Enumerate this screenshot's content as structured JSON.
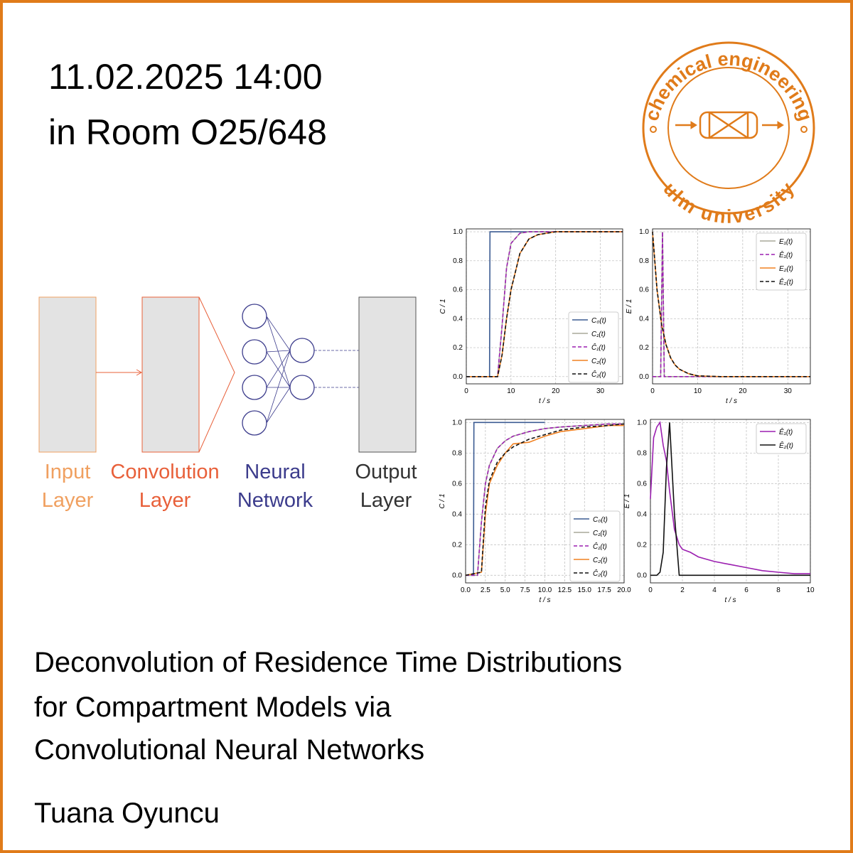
{
  "header": {
    "date": "11.02.2025 14:00",
    "room": "in Room O25/648"
  },
  "logo": {
    "top": "chemical engineering",
    "bottom": "ulm university"
  },
  "diagram": {
    "blocks": [
      {
        "lines": [
          "Input",
          "Layer"
        ],
        "color": "#f0a060"
      },
      {
        "lines": [
          "Convolution",
          "Layer"
        ],
        "color": "#e8603a"
      },
      {
        "lines": [
          "Neural",
          "Network"
        ],
        "color": "#3c3c8c"
      },
      {
        "lines": [
          "Output",
          "Layer"
        ],
        "color": "#333333"
      }
    ]
  },
  "chart_data": [
    {
      "type": "line",
      "xlabel": "t / s",
      "ylabel": "C / 1",
      "xlim": [
        0,
        35
      ],
      "ylim": [
        -0.05,
        1.02
      ],
      "xticks": [
        0,
        10,
        20,
        30
      ],
      "yticks": [
        {
          "value": 0,
          "label": "0.0"
        },
        0.2,
        0.4,
        0.6,
        0.8,
        {
          "value": 1,
          "label": "1.0"
        }
      ],
      "grid": true,
      "legend": "lower right",
      "series": [
        {
          "name": "C₀(t)",
          "color": "#3b5b92",
          "linestyle": "solid",
          "x": [
            0,
            2,
            4,
            5.2,
            5.3,
            8,
            12,
            20,
            35
          ],
          "values": [
            0,
            0,
            0,
            0,
            1,
            1,
            1,
            1,
            1
          ]
        },
        {
          "name": "C₁(t)",
          "color": "#a8a89a",
          "linestyle": "solid",
          "x": [
            0,
            4,
            7,
            8,
            9,
            10,
            12,
            14,
            20,
            35
          ],
          "values": [
            0,
            0,
            0,
            0.35,
            0.75,
            0.92,
            0.99,
            1,
            1,
            1
          ]
        },
        {
          "name": "Ĉ₁(t)",
          "color": "#9b1fb0",
          "linestyle": "dashed",
          "x": [
            0,
            4,
            7,
            8,
            9,
            10,
            12,
            14,
            20,
            35
          ],
          "values": [
            0,
            0,
            0,
            0.35,
            0.75,
            0.92,
            0.99,
            1,
            1,
            1
          ]
        },
        {
          "name": "C₂(t)",
          "color": "#f08020",
          "linestyle": "solid",
          "x": [
            0,
            4,
            7,
            8,
            9,
            10,
            12,
            14,
            16,
            18,
            20,
            35
          ],
          "values": [
            0,
            0,
            0,
            0.15,
            0.4,
            0.6,
            0.85,
            0.95,
            0.98,
            0.99,
            1,
            1
          ]
        },
        {
          "name": "Ĉ₂(t)",
          "color": "#111111",
          "linestyle": "dashed",
          "x": [
            0,
            4,
            7,
            8,
            9,
            10,
            12,
            14,
            16,
            18,
            20,
            35
          ],
          "values": [
            0,
            0,
            0,
            0.15,
            0.4,
            0.6,
            0.85,
            0.95,
            0.98,
            0.99,
            1,
            1
          ]
        }
      ]
    },
    {
      "type": "line",
      "xlabel": "t / s",
      "ylabel": "E / 1",
      "xlim": [
        0,
        35
      ],
      "ylim": [
        -0.05,
        1.02
      ],
      "xticks": [
        0,
        10,
        20,
        30
      ],
      "yticks": [
        {
          "value": 0,
          "label": "0.0"
        },
        0.2,
        0.4,
        0.6,
        0.8,
        {
          "value": 1,
          "label": "1.0"
        }
      ],
      "grid": true,
      "legend": "upper right",
      "series": [
        {
          "name": "E₁(t)",
          "color": "#a8a89a",
          "linestyle": "solid",
          "x": [
            0,
            1.8,
            2.2,
            2.6,
            3,
            10,
            35
          ],
          "values": [
            0,
            0,
            1,
            0,
            0,
            0,
            0
          ]
        },
        {
          "name": "Ê₁(t)",
          "color": "#9b1fb0",
          "linestyle": "dashed",
          "x": [
            0,
            1.8,
            2.2,
            2.6,
            3,
            10,
            35
          ],
          "values": [
            0,
            0,
            1,
            0,
            0,
            0,
            0
          ]
        },
        {
          "name": "E₂(t)",
          "color": "#f08020",
          "linestyle": "solid",
          "x": [
            0,
            1,
            2,
            3,
            4,
            5,
            6,
            8,
            10,
            15,
            35
          ],
          "values": [
            1,
            0.6,
            0.36,
            0.22,
            0.13,
            0.08,
            0.05,
            0.02,
            0.005,
            0,
            0
          ]
        },
        {
          "name": "Ê₂(t)",
          "color": "#111111",
          "linestyle": "dashed",
          "x": [
            0,
            1,
            2,
            3,
            4,
            5,
            6,
            8,
            10,
            15,
            35
          ],
          "values": [
            1,
            0.6,
            0.36,
            0.22,
            0.13,
            0.08,
            0.05,
            0.02,
            0.005,
            0,
            0
          ]
        }
      ]
    },
    {
      "type": "line",
      "xlabel": "t / s",
      "ylabel": "C / 1",
      "xlim": [
        0,
        20
      ],
      "ylim": [
        -0.05,
        1.02
      ],
      "xticks": [
        {
          "value": 0,
          "label": "0.0"
        },
        2.5,
        {
          "value": 5,
          "label": "5.0"
        },
        7.5,
        {
          "value": 10,
          "label": "10.0"
        },
        12.5,
        {
          "value": 15,
          "label": "15.0"
        },
        17.5,
        {
          "value": 20,
          "label": "20.0"
        }
      ],
      "yticks": [
        {
          "value": 0,
          "label": "0.0"
        },
        0.2,
        0.4,
        0.6,
        0.8,
        {
          "value": 1,
          "label": "1.0"
        }
      ],
      "grid": true,
      "legend": "lower right",
      "series": [
        {
          "name": "C₀(t)",
          "color": "#3b5b92",
          "linestyle": "solid",
          "x": [
            0,
            1,
            1.05,
            5,
            10
          ],
          "values": [
            0,
            0,
            1,
            1,
            1
          ]
        },
        {
          "name": "C₁(t)",
          "color": "#a8a89a",
          "linestyle": "solid",
          "x": [
            0,
            1.5,
            2,
            2.5,
            3,
            4,
            5,
            6,
            8,
            10,
            12,
            15,
            18,
            20
          ],
          "values": [
            0,
            0,
            0.35,
            0.6,
            0.72,
            0.83,
            0.88,
            0.91,
            0.94,
            0.96,
            0.97,
            0.98,
            0.99,
            0.99
          ]
        },
        {
          "name": "Ĉ₁(t)",
          "color": "#9b1fb0",
          "linestyle": "dashed",
          "x": [
            0,
            1.5,
            2,
            2.5,
            3,
            4,
            5,
            6,
            8,
            10,
            12,
            15,
            18,
            20
          ],
          "values": [
            0,
            0,
            0.35,
            0.6,
            0.72,
            0.83,
            0.88,
            0.91,
            0.94,
            0.96,
            0.97,
            0.98,
            0.99,
            0.99
          ]
        },
        {
          "name": "C₂(t)",
          "color": "#f08020",
          "linestyle": "solid",
          "x": [
            0,
            2,
            2.5,
            3,
            4,
            5,
            6,
            8,
            10,
            12,
            15,
            18,
            20
          ],
          "values": [
            0,
            0.02,
            0.4,
            0.6,
            0.72,
            0.8,
            0.86,
            0.87,
            0.91,
            0.94,
            0.96,
            0.98,
            0.98
          ]
        },
        {
          "name": "Ĉ₂(t)",
          "color": "#111111",
          "linestyle": "dashed",
          "x": [
            0,
            2,
            2.5,
            3,
            4,
            5,
            6,
            8,
            10,
            12,
            15,
            18,
            20
          ],
          "values": [
            0,
            0.02,
            0.45,
            0.62,
            0.74,
            0.8,
            0.84,
            0.89,
            0.92,
            0.95,
            0.97,
            0.98,
            0.99
          ]
        }
      ]
    },
    {
      "type": "line",
      "xlabel": "t / s",
      "ylabel": "E / 1",
      "xlim": [
        0,
        10
      ],
      "ylim": [
        -0.05,
        1.02
      ],
      "xticks": [
        0,
        2,
        4,
        6,
        8,
        10
      ],
      "yticks": [
        {
          "value": 0,
          "label": "0.0"
        },
        0.2,
        0.4,
        0.6,
        0.8,
        {
          "value": 1,
          "label": "1.0"
        }
      ],
      "grid": true,
      "legend": "upper right",
      "series": [
        {
          "name": "Ê₁(t)",
          "color": "#9b1fb0",
          "linestyle": "solid",
          "x": [
            0,
            0.2,
            0.4,
            0.6,
            0.8,
            1,
            1.2,
            1.5,
            1.8,
            2,
            2.5,
            3,
            4,
            5,
            6,
            7,
            8,
            9,
            10
          ],
          "values": [
            0.5,
            0.9,
            0.97,
            1,
            0.85,
            0.75,
            0.55,
            0.3,
            0.2,
            0.17,
            0.15,
            0.12,
            0.09,
            0.07,
            0.05,
            0.03,
            0.02,
            0.01,
            0.01
          ]
        },
        {
          "name": "Ê₂(t)",
          "color": "#111111",
          "linestyle": "solid",
          "x": [
            0,
            0.4,
            0.6,
            0.8,
            1,
            1.2,
            1.5,
            1.8,
            2,
            10
          ],
          "values": [
            0,
            0,
            0.02,
            0.15,
            0.7,
            1,
            0.4,
            0,
            0,
            0
          ]
        }
      ]
    }
  ],
  "talk": {
    "title_lines": [
      "Deconvolution of Residence Time Distributions",
      "for Compartment Models via",
      "Convolutional Neural Networks"
    ],
    "speaker": "Tuana Oyuncu"
  }
}
